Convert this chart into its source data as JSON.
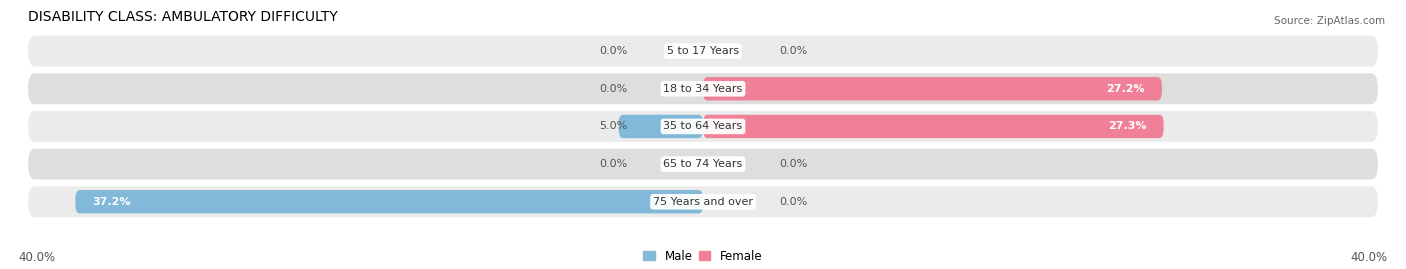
{
  "title": "DISABILITY CLASS: AMBULATORY DIFFICULTY",
  "source": "Source: ZipAtlas.com",
  "categories": [
    "5 to 17 Years",
    "18 to 34 Years",
    "35 to 64 Years",
    "65 to 74 Years",
    "75 Years and over"
  ],
  "male_values": [
    0.0,
    0.0,
    5.0,
    0.0,
    37.2
  ],
  "female_values": [
    0.0,
    27.2,
    27.3,
    0.0,
    0.0
  ],
  "max_value": 40.0,
  "male_color": "#82B8D8",
  "female_color": "#F08098",
  "row_bg_color_odd": "#EBEBEB",
  "row_bg_color_even": "#DEDEDE",
  "axis_label_left": "40.0%",
  "axis_label_right": "40.0%",
  "title_fontsize": 10,
  "label_fontsize": 8,
  "bar_height": 0.62,
  "figsize": [
    14.06,
    2.69
  ],
  "dpi": 100
}
